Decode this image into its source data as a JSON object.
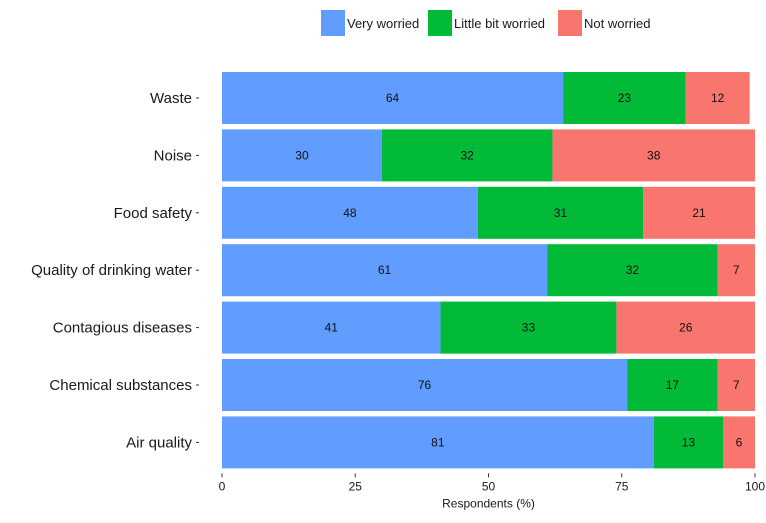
{
  "chart_data": {
    "type": "bar",
    "orientation": "horizontal",
    "stacked": true,
    "categories": [
      "Waste",
      "Noise",
      "Food safety",
      "Quality of drinking water",
      "Contagious diseases",
      "Chemical substances",
      "Air quality"
    ],
    "series": [
      {
        "name": "Very worried",
        "color": "#619CFF",
        "values": [
          64,
          30,
          48,
          61,
          41,
          76,
          81
        ]
      },
      {
        "name": "Little bit worried",
        "color": "#00BA38",
        "values": [
          23,
          32,
          31,
          32,
          33,
          17,
          13
        ]
      },
      {
        "name": "Not worried",
        "color": "#F8766D",
        "values": [
          12,
          38,
          21,
          7,
          26,
          7,
          6
        ]
      }
    ],
    "xlabel": "Respondents (%)",
    "ylabel": "",
    "xlim": [
      0,
      100
    ],
    "xticks": [
      "0",
      "25",
      "50",
      "75",
      "100"
    ],
    "legend_position": "top",
    "grid": false
  }
}
